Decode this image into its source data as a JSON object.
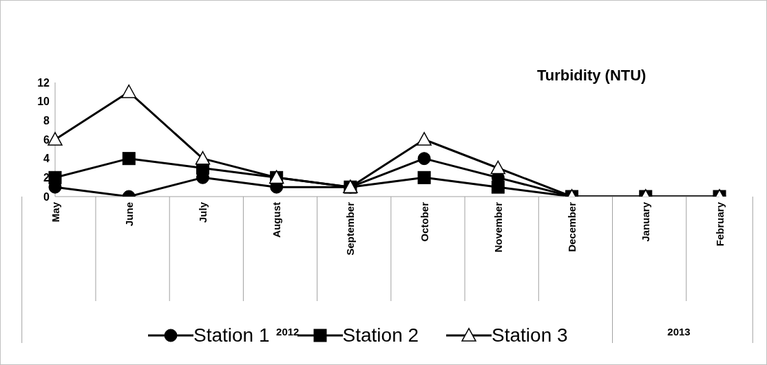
{
  "chart_data": {
    "type": "line",
    "title": "Turbidity (NTU)",
    "categories": [
      "May",
      "June",
      "July",
      "August",
      "September",
      "October",
      "November",
      "December",
      "January",
      "February"
    ],
    "annotations": [
      "2012",
      "2013"
    ],
    "series": [
      {
        "name": "Station 1",
        "color": "#000000",
        "marker": "circle",
        "values": [
          1,
          0,
          2,
          1,
          1,
          4,
          2,
          0,
          0,
          0
        ]
      },
      {
        "name": "Station 2",
        "color": "#000000",
        "marker": "square",
        "values": [
          2,
          4,
          3,
          2,
          1,
          2,
          1,
          0,
          0,
          0
        ]
      },
      {
        "name": "Station 3",
        "color": "#000000",
        "marker": "triangle",
        "values": [
          6,
          11,
          4,
          2,
          1,
          6,
          3,
          0,
          0,
          0
        ]
      }
    ],
    "ylim": [
      0,
      12
    ],
    "yticks": [
      0,
      2,
      4,
      6,
      8,
      10,
      12
    ],
    "grid": false,
    "legend": "bottom",
    "line_style": "solid"
  }
}
